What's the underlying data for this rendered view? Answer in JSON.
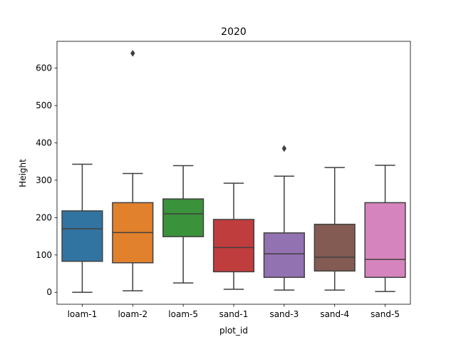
{
  "chart_data": {
    "type": "box",
    "title": "2020",
    "xlabel": "plot_id",
    "ylabel": "Height",
    "ylim": [
      -32,
      672
    ],
    "yticks": [
      0,
      100,
      200,
      300,
      400,
      500,
      600
    ],
    "grid": false,
    "categories": [
      "loam-1",
      "loam-2",
      "loam-5",
      "sand-1",
      "sand-3",
      "sand-4",
      "sand-5"
    ],
    "boxes": [
      {
        "category": "loam-1",
        "whisker_low": 0,
        "q1": 83,
        "median": 170,
        "q3": 218,
        "whisker_high": 343,
        "outliers": [],
        "color": "#3274a1"
      },
      {
        "category": "loam-2",
        "whisker_low": 4,
        "q1": 79,
        "median": 160,
        "q3": 240,
        "whisker_high": 318,
        "outliers": [
          640
        ],
        "color": "#e1812c"
      },
      {
        "category": "loam-5",
        "whisker_low": 25,
        "q1": 149,
        "median": 210,
        "q3": 250,
        "whisker_high": 339,
        "outliers": [],
        "color": "#3a923a"
      },
      {
        "category": "sand-1",
        "whisker_low": 8,
        "q1": 55,
        "median": 120,
        "q3": 195,
        "whisker_high": 292,
        "outliers": [],
        "color": "#c03d3e"
      },
      {
        "category": "sand-3",
        "whisker_low": 6,
        "q1": 40,
        "median": 103,
        "q3": 159,
        "whisker_high": 311,
        "outliers": [
          385
        ],
        "color": "#9372b2"
      },
      {
        "category": "sand-4",
        "whisker_low": 6,
        "q1": 57,
        "median": 94,
        "q3": 182,
        "whisker_high": 334,
        "outliers": [],
        "color": "#845b53"
      },
      {
        "category": "sand-5",
        "whisker_low": 2,
        "q1": 40,
        "median": 88,
        "q3": 240,
        "whisker_high": 340,
        "outliers": [],
        "color": "#d684bd"
      }
    ]
  }
}
